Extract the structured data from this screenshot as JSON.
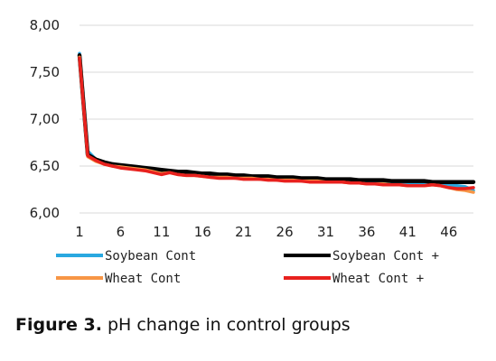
{
  "chart_data": {
    "type": "line",
    "x": [
      1,
      2,
      3,
      4,
      5,
      6,
      7,
      8,
      9,
      10,
      11,
      12,
      13,
      14,
      15,
      16,
      17,
      18,
      19,
      20,
      21,
      22,
      23,
      24,
      25,
      26,
      27,
      28,
      29,
      30,
      31,
      32,
      33,
      34,
      35,
      36,
      37,
      38,
      39,
      40,
      41,
      42,
      43,
      44,
      45,
      46,
      47,
      48,
      49
    ],
    "xticks": [
      1,
      6,
      11,
      16,
      21,
      26,
      31,
      36,
      41,
      46
    ],
    "xtick_labels": [
      "1",
      "6",
      "11",
      "16",
      "21",
      "26",
      "31",
      "36",
      "41",
      "46"
    ],
    "yticks": [
      6.0,
      6.5,
      7.0,
      7.5,
      8.0
    ],
    "ytick_labels": [
      "6,00",
      "6,50",
      "7,00",
      "7,50",
      "8,00"
    ],
    "ylim": [
      6.0,
      8.0
    ],
    "xlim": [
      1,
      49
    ],
    "grid": "horizontal",
    "legend_position": "bottom",
    "series": [
      {
        "name": "Soybean Cont",
        "color": "#29a8e0",
        "values": [
          7.7,
          6.66,
          6.57,
          6.53,
          6.51,
          6.5,
          6.49,
          6.48,
          6.47,
          6.46,
          6.45,
          6.44,
          6.43,
          6.43,
          6.42,
          6.41,
          6.4,
          6.4,
          6.39,
          6.39,
          6.38,
          6.38,
          6.37,
          6.37,
          6.36,
          6.36,
          6.36,
          6.35,
          6.35,
          6.35,
          6.34,
          6.34,
          6.34,
          6.33,
          6.33,
          6.33,
          6.32,
          6.32,
          6.32,
          6.32,
          6.31,
          6.31,
          6.31,
          6.31,
          6.3,
          6.3,
          6.29,
          6.28,
          6.24
        ]
      },
      {
        "name": "Soybean Cont +",
        "color": "#000000",
        "values": [
          7.68,
          6.62,
          6.57,
          6.54,
          6.52,
          6.51,
          6.5,
          6.49,
          6.48,
          6.47,
          6.46,
          6.45,
          6.44,
          6.44,
          6.43,
          6.42,
          6.42,
          6.41,
          6.41,
          6.4,
          6.4,
          6.39,
          6.39,
          6.39,
          6.38,
          6.38,
          6.38,
          6.37,
          6.37,
          6.37,
          6.36,
          6.36,
          6.36,
          6.36,
          6.35,
          6.35,
          6.35,
          6.35,
          6.34,
          6.34,
          6.34,
          6.34,
          6.34,
          6.33,
          6.33,
          6.33,
          6.33,
          6.33,
          6.33
        ]
      },
      {
        "name": "Wheat Cont",
        "color": "#f79646",
        "values": [
          7.66,
          6.6,
          6.55,
          6.52,
          6.5,
          6.49,
          6.48,
          6.47,
          6.46,
          6.44,
          6.42,
          6.43,
          6.41,
          6.4,
          6.4,
          6.39,
          6.38,
          6.38,
          6.38,
          6.37,
          6.37,
          6.37,
          6.36,
          6.36,
          6.35,
          6.35,
          6.35,
          6.34,
          6.34,
          6.34,
          6.33,
          6.33,
          6.33,
          6.32,
          6.32,
          6.31,
          6.31,
          6.31,
          6.3,
          6.3,
          6.29,
          6.29,
          6.29,
          6.3,
          6.29,
          6.27,
          6.25,
          6.24,
          6.22
        ]
      },
      {
        "name": "Wheat Cont +",
        "color": "#e8211e",
        "values": [
          7.65,
          6.61,
          6.56,
          6.52,
          6.5,
          6.48,
          6.47,
          6.46,
          6.45,
          6.43,
          6.41,
          6.43,
          6.41,
          6.4,
          6.4,
          6.39,
          6.38,
          6.37,
          6.37,
          6.37,
          6.36,
          6.36,
          6.36,
          6.35,
          6.35,
          6.34,
          6.34,
          6.34,
          6.33,
          6.33,
          6.33,
          6.33,
          6.33,
          6.32,
          6.32,
          6.31,
          6.31,
          6.3,
          6.3,
          6.3,
          6.29,
          6.29,
          6.29,
          6.3,
          6.29,
          6.27,
          6.26,
          6.26,
          6.27
        ]
      }
    ]
  },
  "caption": {
    "label": "Figure 3.",
    "text": " pH change in control groups"
  }
}
